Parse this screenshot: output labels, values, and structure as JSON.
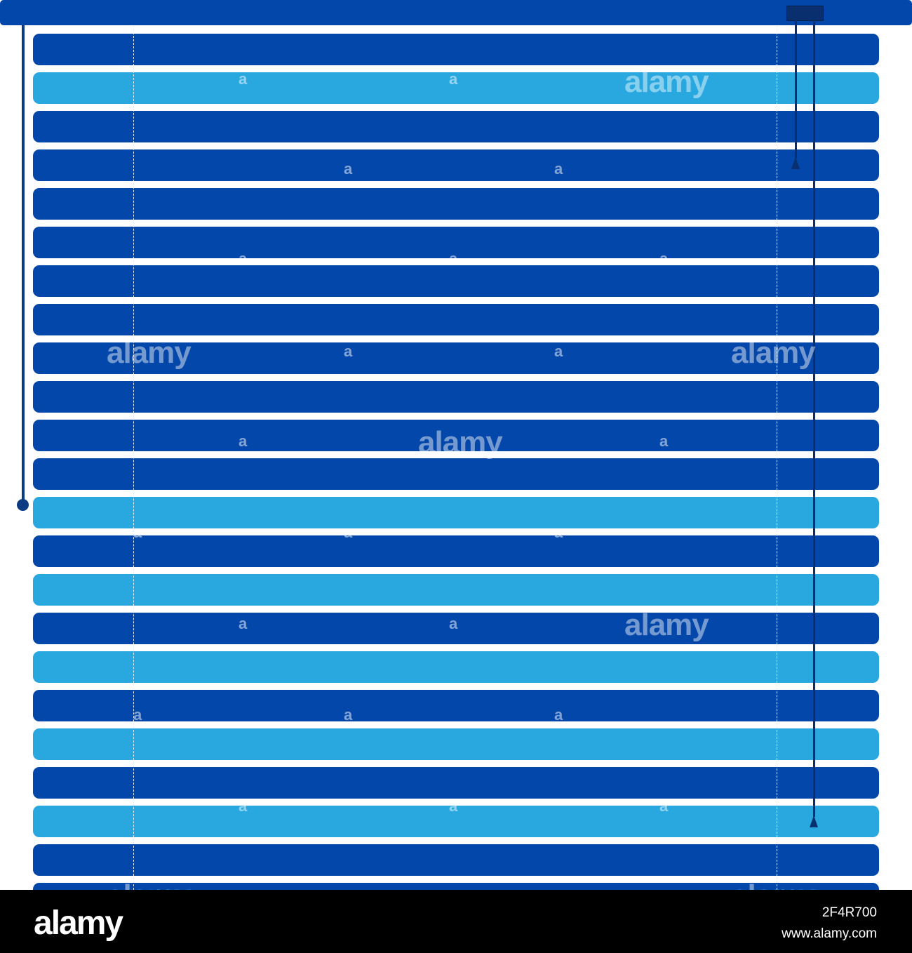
{
  "blinds": {
    "slat_count": 23,
    "slat_colors": [
      "dark",
      "light",
      "dark",
      "dark",
      "dark",
      "dark",
      "dark",
      "dark",
      "dark",
      "dark",
      "dark",
      "dark",
      "light",
      "dark",
      "light",
      "dark",
      "light",
      "dark",
      "light",
      "dark",
      "light",
      "dark",
      "dark"
    ],
    "colors": {
      "dark": "#0447aa",
      "light": "#29a8e0",
      "cord": "#0a2f6e",
      "background": "#ffffff"
    }
  },
  "watermark": {
    "text": "alamy",
    "glyph": "a"
  },
  "footer": {
    "logo": "alamy",
    "image_id": "2F4R700",
    "site": "www.alamy.com"
  }
}
